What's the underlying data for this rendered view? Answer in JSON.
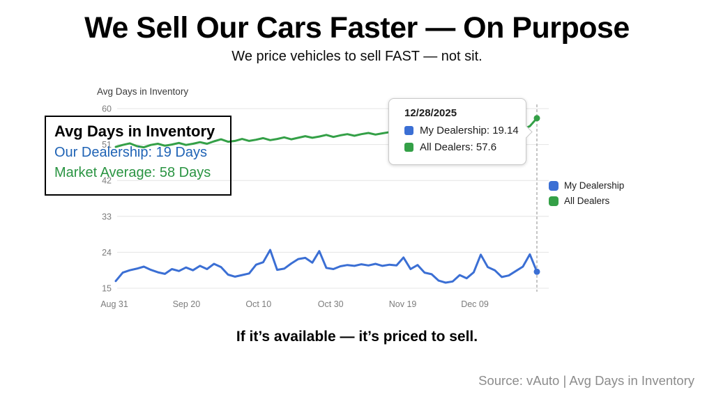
{
  "slide": {
    "title": "We Sell Our Cars Faster — On Purpose",
    "subtitle": "We price vehicles to sell FAST — not sit.",
    "tagline": "If it’s available — it’s priced to sell.",
    "source": "Source: vAuto | Avg Days in Inventory"
  },
  "overlay": {
    "title": "Avg Days in Inventory",
    "line1": "Our Dealership: 19 Days",
    "line2": "Market Average: 58 Days",
    "line1_color": "#1f63b5",
    "line2_color": "#2a9442"
  },
  "tooltip": {
    "date": "12/28/2025",
    "rows": [
      {
        "label": "My Dealership: 19.14",
        "color": "#3b6fd4"
      },
      {
        "label": "All Dealers: 57.6",
        "color": "#34a047"
      }
    ]
  },
  "legend": {
    "items": [
      {
        "label": "My Dealership",
        "color": "#3b6fd4"
      },
      {
        "label": "All Dealers",
        "color": "#34a047"
      }
    ]
  },
  "chart_data": {
    "type": "line",
    "title": "Avg Days in Inventory",
    "xlabel": "",
    "ylabel": "",
    "x_tick_labels": [
      "Aug 31",
      "Sep 20",
      "Oct 10",
      "Oct 30",
      "Nov 19",
      "Dec 09"
    ],
    "y_ticks": [
      60,
      51,
      42,
      33,
      24,
      15
    ],
    "ylim": [
      15,
      60
    ],
    "grid": true,
    "legend_position": "right",
    "crosshair_last_point": true,
    "last_point_date": "12/28/2025",
    "colors": {
      "grid": "#e4e4e4",
      "ticks": "#7c7c7c",
      "crosshair": "#a6a6a6"
    },
    "series": [
      {
        "name": "My Dealership",
        "color": "#3b6fd4",
        "end_value": 19.14,
        "values": [
          16.8,
          18.9,
          19.5,
          19.9,
          20.4,
          19.6,
          19.0,
          18.6,
          19.8,
          19.3,
          20.2,
          19.5,
          20.6,
          19.8,
          21.1,
          20.3,
          18.4,
          17.9,
          18.3,
          18.7,
          20.9,
          21.5,
          24.6,
          19.6,
          19.9,
          21.2,
          22.3,
          22.6,
          21.4,
          24.3,
          20.1,
          19.8,
          20.5,
          20.8,
          20.6,
          21.0,
          20.7,
          21.1,
          20.6,
          20.9,
          20.7,
          22.7,
          19.8,
          20.8,
          18.9,
          18.5,
          16.9,
          16.4,
          16.7,
          18.3,
          17.5,
          19.0,
          23.4,
          20.3,
          19.5,
          17.8,
          18.2,
          19.3,
          20.4,
          23.5,
          19.14
        ]
      },
      {
        "name": "All Dealers",
        "color": "#34a047",
        "end_value": 57.6,
        "values": [
          50.4,
          50.9,
          51.3,
          50.6,
          50.3,
          50.9,
          51.2,
          50.7,
          51.0,
          51.4,
          50.9,
          51.2,
          51.6,
          51.2,
          51.8,
          52.3,
          51.7,
          51.9,
          52.4,
          51.9,
          52.2,
          52.6,
          52.1,
          52.4,
          52.8,
          52.3,
          52.7,
          53.1,
          52.7,
          53.0,
          53.4,
          52.9,
          53.3,
          53.6,
          53.2,
          53.6,
          53.9,
          53.5,
          53.8,
          54.1,
          53.7,
          54.0,
          54.3,
          53.9,
          54.2,
          54.5,
          54.1,
          54.4,
          54.7,
          54.3,
          54.6,
          54.9,
          54.5,
          54.8,
          55.0,
          54.6,
          54.9,
          55.1,
          54.8,
          55.6,
          57.6
        ]
      }
    ]
  }
}
